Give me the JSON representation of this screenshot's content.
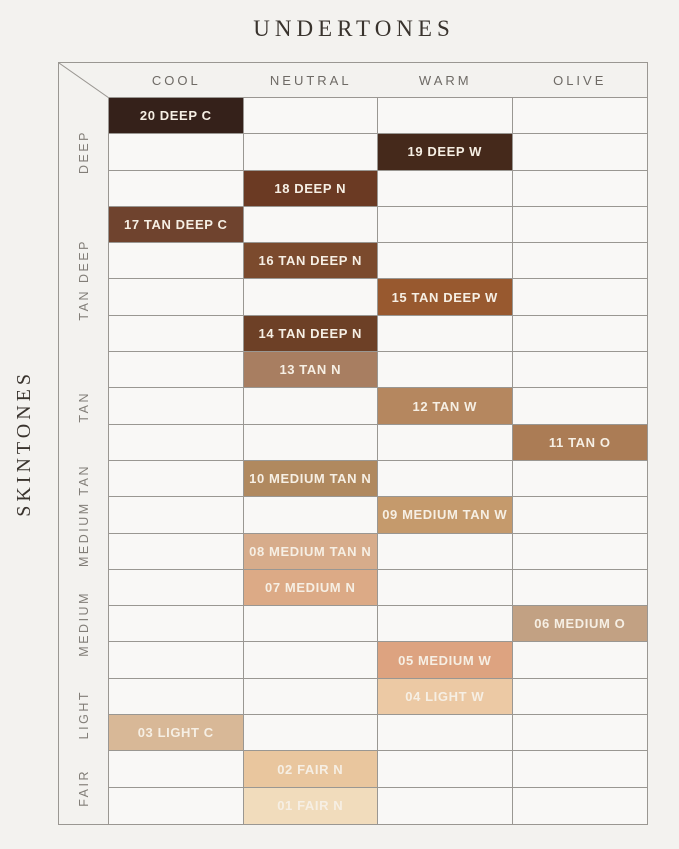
{
  "title": "UNDERTONES",
  "side_label": "SKINTONES",
  "columns": [
    "COOL",
    "NEUTRAL",
    "WARM",
    "OLIVE"
  ],
  "row_groups": [
    {
      "label": "DEEP",
      "span": 3
    },
    {
      "label": "TAN DEEP",
      "span": 4
    },
    {
      "label": "TAN",
      "span": 3
    },
    {
      "label": "MEDIUM TAN",
      "span": 3
    },
    {
      "label": "MEDIUM",
      "span": 3
    },
    {
      "label": "LIGHT",
      "span": 2
    },
    {
      "label": "FAIR",
      "span": 2
    }
  ],
  "colors": {
    "page_bg": "#f3f2ef",
    "cell_bg": "#f9f8f6",
    "border": "#9a9792",
    "heading": "#39332d",
    "col_header": "#6e6a65",
    "group_label": "#827e78",
    "shade_text": "#f6efe4"
  },
  "chart_data": {
    "type": "heatmap",
    "title": "UNDERTONES",
    "x_title": "UNDERTONES",
    "y_title": "SKINTONES",
    "x_categories": [
      "COOL",
      "NEUTRAL",
      "WARM",
      "OLIVE"
    ],
    "y_groups": [
      {
        "label": "DEEP",
        "span": 3
      },
      {
        "label": "TAN DEEP",
        "span": 4
      },
      {
        "label": "TAN",
        "span": 3
      },
      {
        "label": "MEDIUM TAN",
        "span": 3
      },
      {
        "label": "MEDIUM",
        "span": 3
      },
      {
        "label": "LIGHT",
        "span": 2
      },
      {
        "label": "FAIR",
        "span": 2
      }
    ],
    "grid": true,
    "legend": false,
    "cells": [
      {
        "row": 0,
        "col": 0,
        "label": "20 DEEP C",
        "undertone": "COOL",
        "skintone": "DEEP",
        "color": "#35211a"
      },
      {
        "row": 1,
        "col": 2,
        "label": "19 DEEP W",
        "undertone": "WARM",
        "skintone": "DEEP",
        "color": "#45291b"
      },
      {
        "row": 2,
        "col": 1,
        "label": "18 DEEP N",
        "undertone": "NEUTRAL",
        "skintone": "DEEP",
        "color": "#6b3a23"
      },
      {
        "row": 3,
        "col": 0,
        "label": "17 TAN DEEP C",
        "undertone": "COOL",
        "skintone": "TAN DEEP",
        "color": "#6f432e"
      },
      {
        "row": 4,
        "col": 1,
        "label": "16 TAN DEEP N",
        "undertone": "NEUTRAL",
        "skintone": "TAN DEEP",
        "color": "#7b4a2d"
      },
      {
        "row": 5,
        "col": 2,
        "label": "15 TAN DEEP W",
        "undertone": "WARM",
        "skintone": "TAN DEEP",
        "color": "#98592f"
      },
      {
        "row": 6,
        "col": 1,
        "label": "14 TAN DEEP N",
        "undertone": "NEUTRAL",
        "skintone": "TAN DEEP",
        "color": "#6d4026"
      },
      {
        "row": 7,
        "col": 1,
        "label": "13 TAN N",
        "undertone": "NEUTRAL",
        "skintone": "TAN",
        "color": "#a87e61"
      },
      {
        "row": 8,
        "col": 2,
        "label": "12 TAN W",
        "undertone": "WARM",
        "skintone": "TAN",
        "color": "#b5875f"
      },
      {
        "row": 9,
        "col": 3,
        "label": "11 TAN O",
        "undertone": "OLIVE",
        "skintone": "TAN",
        "color": "#ab7c55"
      },
      {
        "row": 10,
        "col": 1,
        "label": "10 MEDIUM TAN N",
        "undertone": "NEUTRAL",
        "skintone": "MEDIUM TAN",
        "color": "#b0895f"
      },
      {
        "row": 11,
        "col": 2,
        "label": "09 MEDIUM TAN W",
        "undertone": "WARM",
        "skintone": "MEDIUM TAN",
        "color": "#c59a6c"
      },
      {
        "row": 12,
        "col": 1,
        "label": "08 MEDIUM TAN N",
        "undertone": "NEUTRAL",
        "skintone": "MEDIUM TAN",
        "color": "#d7ac8b"
      },
      {
        "row": 13,
        "col": 1,
        "label": "07 MEDIUM N",
        "undertone": "NEUTRAL",
        "skintone": "MEDIUM",
        "color": "#dcaa86"
      },
      {
        "row": 14,
        "col": 3,
        "label": "06 MEDIUM O",
        "undertone": "OLIVE",
        "skintone": "MEDIUM",
        "color": "#c2a183"
      },
      {
        "row": 15,
        "col": 2,
        "label": "05 MEDIUM W",
        "undertone": "WARM",
        "skintone": "MEDIUM",
        "color": "#dda380"
      },
      {
        "row": 16,
        "col": 2,
        "label": "04 LIGHT W",
        "undertone": "WARM",
        "skintone": "LIGHT",
        "color": "#ecc9a4"
      },
      {
        "row": 17,
        "col": 0,
        "label": "03 LIGHT C",
        "undertone": "COOL",
        "skintone": "LIGHT",
        "color": "#d8b897"
      },
      {
        "row": 18,
        "col": 1,
        "label": "02 FAIR N",
        "undertone": "NEUTRAL",
        "skintone": "FAIR",
        "color": "#e9c69e"
      },
      {
        "row": 19,
        "col": 1,
        "label": "01 FAIR N",
        "undertone": "NEUTRAL",
        "skintone": "FAIR",
        "color": "#f1dcbc"
      }
    ]
  }
}
